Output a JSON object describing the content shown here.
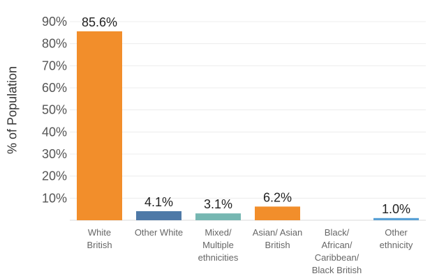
{
  "chart_data": {
    "type": "bar",
    "title": "",
    "xlabel": "",
    "ylabel": "% of Population",
    "ylim": [
      0,
      90
    ],
    "yticks": [
      10,
      20,
      30,
      40,
      50,
      60,
      70,
      80,
      90
    ],
    "ytick_labels": [
      "10%",
      "20%",
      "30%",
      "40%",
      "50%",
      "60%",
      "70%",
      "80%",
      "90%"
    ],
    "grid": true,
    "legend": "none",
    "categories": [
      [
        "White",
        "British"
      ],
      [
        "Other White"
      ],
      [
        "Mixed/",
        "Multiple",
        "ethnicities"
      ],
      [
        "Asian/ Asian",
        "British"
      ],
      [
        "Black/",
        "African/",
        "Caribbean/",
        "Black British"
      ],
      [
        "Other",
        "ethnicity"
      ]
    ],
    "values": [
      85.6,
      4.1,
      3.1,
      6.2,
      0,
      1.0
    ],
    "data_labels": [
      "85.6%",
      "4.1%",
      "3.1%",
      "6.2%",
      "",
      "1.0%"
    ],
    "colors": [
      "#f28e2b",
      "#4e79a7",
      "#76b7b2",
      "#f28e2b",
      "#e15759",
      "#59a1d6"
    ]
  }
}
